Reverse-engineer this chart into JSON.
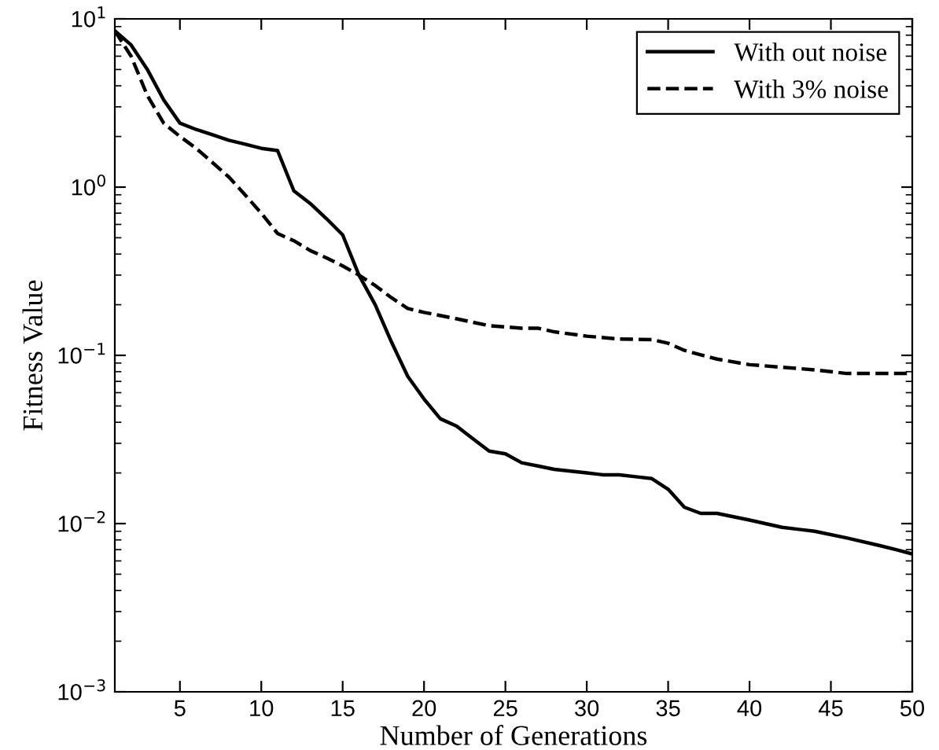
{
  "chart_data": {
    "type": "line",
    "xlabel": "Number of Generations",
    "ylabel": "Fitness Value",
    "log": "y",
    "xlim": [
      1,
      50
    ],
    "xticks": [
      5,
      10,
      15,
      20,
      25,
      30,
      35,
      40,
      45,
      50
    ],
    "ylim": [
      0.001,
      10
    ],
    "yticks": [
      {
        "value": 0.001,
        "label": "10$^{−3}$"
      },
      {
        "value": 0.01,
        "label": "10$^{−2}$"
      },
      {
        "value": 0.1,
        "label": "10$^{−1}$"
      },
      {
        "value": 1,
        "label": "10$^{0}$"
      },
      {
        "value": 10,
        "label": "10$^{1}$"
      }
    ],
    "grid": false,
    "legend": "top right",
    "marker": "none",
    "series": [
      {
        "name": "With out noise",
        "color": "#000000",
        "line_style": "solid",
        "x": [
          1,
          2,
          3,
          4,
          5,
          6,
          7,
          8,
          9,
          10,
          11,
          12,
          13,
          14,
          15,
          16,
          17,
          18,
          19,
          20,
          21,
          22,
          23,
          24,
          25,
          26,
          27,
          28,
          29,
          30,
          31,
          32,
          33,
          34,
          35,
          36,
          37,
          38,
          40,
          42,
          44,
          46,
          48,
          49,
          50
        ],
        "values": [
          8.5,
          7,
          5,
          3.3,
          2.4,
          2.2,
          2.05,
          1.9,
          1.8,
          1.7,
          1.65,
          0.95,
          0.8,
          0.65,
          0.52,
          0.3,
          0.2,
          0.12,
          0.075,
          0.055,
          0.042,
          0.038,
          0.032,
          0.027,
          0.026,
          0.023,
          0.022,
          0.021,
          0.0205,
          0.02,
          0.0195,
          0.0195,
          0.019,
          0.0185,
          0.016,
          0.0125,
          0.0115,
          0.0115,
          0.0105,
          0.0095,
          0.009,
          0.0082,
          0.0074,
          0.007,
          0.0066
        ]
      },
      {
        "name": "With 3% noise",
        "color": "#000000",
        "line_style": "dashed",
        "x": [
          1,
          2,
          3,
          4,
          5,
          6,
          7,
          8,
          9,
          10,
          11,
          12,
          13,
          14,
          15,
          16,
          17,
          18,
          19,
          20,
          22,
          24,
          26,
          27,
          28,
          30,
          32,
          34,
          35,
          36,
          38,
          40,
          42,
          44,
          46,
          48,
          50
        ],
        "values": [
          8.5,
          6,
          3.5,
          2.4,
          2,
          1.7,
          1.4,
          1.15,
          0.9,
          0.7,
          0.53,
          0.48,
          0.42,
          0.38,
          0.34,
          0.3,
          0.26,
          0.22,
          0.19,
          0.18,
          0.165,
          0.15,
          0.145,
          0.145,
          0.138,
          0.13,
          0.125,
          0.124,
          0.118,
          0.107,
          0.095,
          0.088,
          0.085,
          0.082,
          0.078,
          0.078,
          0.078
        ]
      }
    ]
  }
}
